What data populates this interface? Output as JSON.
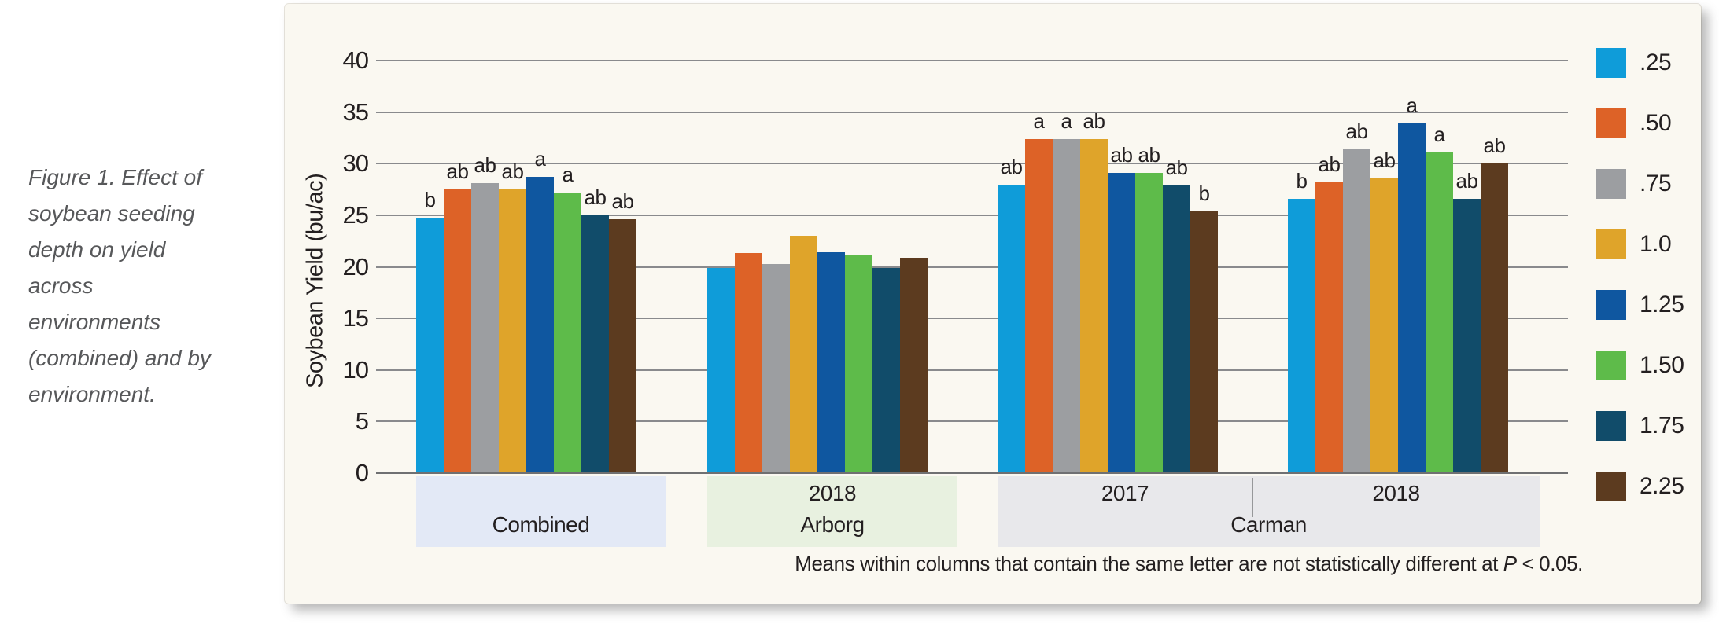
{
  "caption": "Figure 1. Effect of soybean seeding depth on yield across environments (combined) and by environment.",
  "chart_data": {
    "type": "bar",
    "ylabel": "Soybean Yield (bu/ac)",
    "ylim": [
      0,
      40
    ],
    "yticks": [
      0,
      5,
      10,
      15,
      20,
      25,
      30,
      35,
      40
    ],
    "grid": true,
    "legend_position": "right",
    "legend_values_are": "seeding depth (inches)",
    "groups": [
      "Combined",
      "Arborg 2018",
      "Carman 2017",
      "Carman 2018"
    ],
    "series": [
      {
        "name": ".25",
        "color": "#0f9cd9",
        "values": [
          24.8,
          19.9,
          28.0,
          26.6
        ]
      },
      {
        "name": ".50",
        "color": "#dd6227",
        "values": [
          27.5,
          21.3,
          32.4,
          28.2
        ]
      },
      {
        "name": ".75",
        "color": "#9c9ea1",
        "values": [
          28.1,
          20.3,
          32.4,
          31.4
        ]
      },
      {
        "name": "1.0",
        "color": "#dfa42a",
        "values": [
          27.5,
          23.0,
          32.4,
          28.6
        ]
      },
      {
        "name": "1.25",
        "color": "#0f57a0",
        "values": [
          28.7,
          21.4,
          29.1,
          33.9
        ]
      },
      {
        "name": "1.50",
        "color": "#5ebb4a",
        "values": [
          27.2,
          21.2,
          29.1,
          31.1
        ]
      },
      {
        "name": "1.75",
        "color": "#114c6a",
        "values": [
          25.0,
          19.9,
          27.9,
          26.6
        ]
      },
      {
        "name": "2.25",
        "color": "#5c3b1f",
        "values": [
          24.6,
          20.9,
          25.4,
          30.0
        ]
      }
    ],
    "letters": [
      [
        "b",
        "ab",
        "ab",
        "ab",
        "a",
        "a",
        "ab",
        "ab"
      ],
      [
        "",
        "",
        "",
        "",
        "",
        "",
        "",
        ""
      ],
      [
        "ab",
        "a",
        "a",
        "ab",
        "ab",
        "ab",
        "ab",
        "b"
      ],
      [
        "b",
        "ab",
        "ab",
        "ab",
        "a",
        "a",
        "ab",
        "ab"
      ]
    ],
    "bands": [
      {
        "line1": "",
        "line1b": "",
        "line2": "Combined",
        "color": "#e3e9f6"
      },
      {
        "line1": "2018",
        "line1b": "",
        "line2": "Arborg",
        "color": "#e8f1e0"
      },
      {
        "line1": "2017",
        "line1b": "2018",
        "line2": "Carman",
        "color": "#e8e8eb"
      }
    ],
    "footnote": {
      "text": "Means within columns that contain the same letter are not statistically different at ",
      "p": "P",
      "tail": " < 0.05."
    }
  }
}
